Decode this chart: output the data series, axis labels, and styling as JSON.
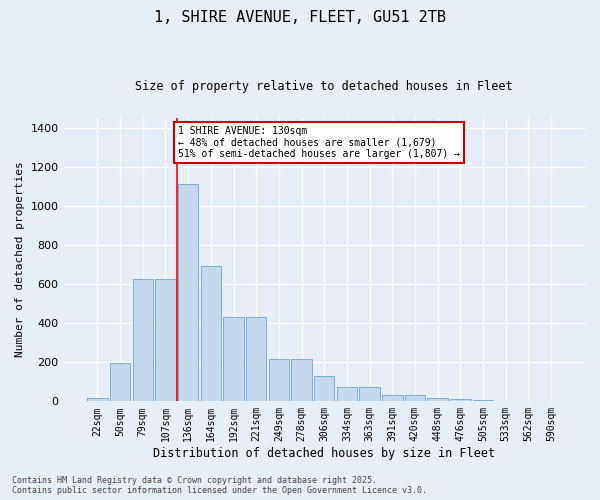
{
  "title_line1": "1, SHIRE AVENUE, FLEET, GU51 2TB",
  "title_line2": "Size of property relative to detached houses in Fleet",
  "xlabel": "Distribution of detached houses by size in Fleet",
  "ylabel": "Number of detached properties",
  "categories": [
    "22sqm",
    "50sqm",
    "79sqm",
    "107sqm",
    "136sqm",
    "164sqm",
    "192sqm",
    "221sqm",
    "249sqm",
    "278sqm",
    "306sqm",
    "334sqm",
    "363sqm",
    "391sqm",
    "420sqm",
    "448sqm",
    "476sqm",
    "505sqm",
    "533sqm",
    "562sqm",
    "590sqm"
  ],
  "values": [
    15,
    195,
    625,
    625,
    1110,
    690,
    430,
    430,
    215,
    215,
    130,
    75,
    75,
    30,
    30,
    15,
    10,
    5,
    3,
    2,
    1
  ],
  "bar_color": "#c5d8ee",
  "bar_edge_color": "#7bafd4",
  "bg_color": "#e8eef8",
  "grid_color": "#d0d8e8",
  "red_line_index": 4,
  "annotation_text": "1 SHIRE AVENUE: 130sqm\n← 48% of detached houses are smaller (1,679)\n51% of semi-detached houses are larger (1,807) →",
  "footer_line1": "Contains HM Land Registry data © Crown copyright and database right 2025.",
  "footer_line2": "Contains public sector information licensed under the Open Government Licence v3.0.",
  "ylim_max": 1450,
  "yticks": [
    0,
    200,
    400,
    600,
    800,
    1000,
    1200,
    1400
  ]
}
